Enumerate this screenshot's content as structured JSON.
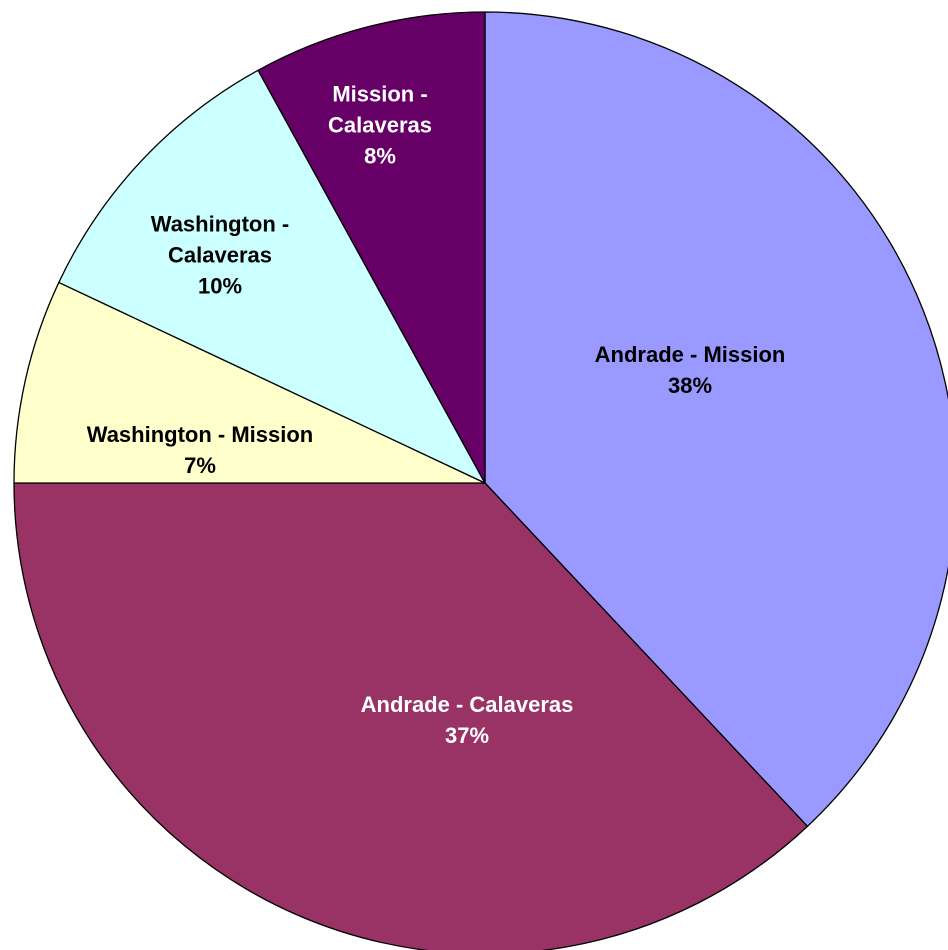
{
  "chart_data": {
    "type": "pie",
    "categories": [
      "Andrade - Mission",
      "Andrade - Calaveras",
      "Washington - Mission",
      "Washington - Calaveras",
      "Mission - Calaveras"
    ],
    "values": [
      38,
      37,
      7,
      10,
      8
    ],
    "value_labels": [
      "38%",
      "37%",
      "7%",
      "10%",
      "8%"
    ],
    "colors": [
      "#9999ff",
      "#993366",
      "#ffffcc",
      "#ccffff",
      "#660066"
    ]
  }
}
